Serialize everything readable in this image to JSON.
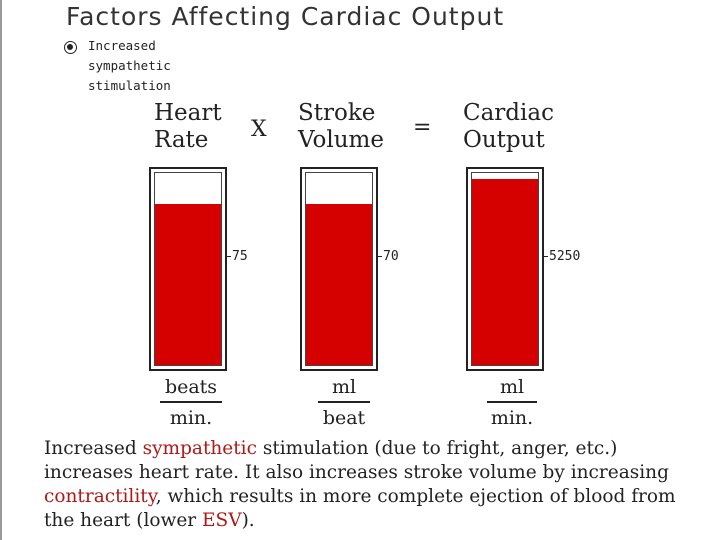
{
  "title": "Factors Affecting Cardiac Output",
  "condition": {
    "label_lines": [
      "Increased",
      "sympathetic",
      "stimulation"
    ]
  },
  "equation": {
    "multiply_sign": "X",
    "equals_sign": "="
  },
  "columns": [
    {
      "heading": [
        "Heart",
        "Rate"
      ],
      "value_label": "75",
      "fill_fraction": 0.84,
      "unit_numerator": "beats",
      "unit_denominator": "min."
    },
    {
      "heading": [
        "Stroke",
        "Volume"
      ],
      "value_label": "70",
      "fill_fraction": 0.84,
      "unit_numerator": "ml",
      "unit_denominator": "beat"
    },
    {
      "heading": [
        "Cardiac",
        "Output"
      ],
      "value_label": "5250",
      "fill_fraction": 0.97,
      "unit_numerator": "ml",
      "unit_denominator": "min."
    }
  ],
  "colors": {
    "fill": "#d50000",
    "highlight_text": "#b01818"
  },
  "caption": {
    "part1": "Increased ",
    "sympathetic": "sympathetic",
    "part2": " stimulation (due to fright, anger, etc.) increases heart rate. It also increases stroke volume by increasing ",
    "contractility": "contractility",
    "part3": ", which results in more complete ejection of blood from the heart (lower ",
    "esv": "ESV",
    "part4": ")."
  }
}
